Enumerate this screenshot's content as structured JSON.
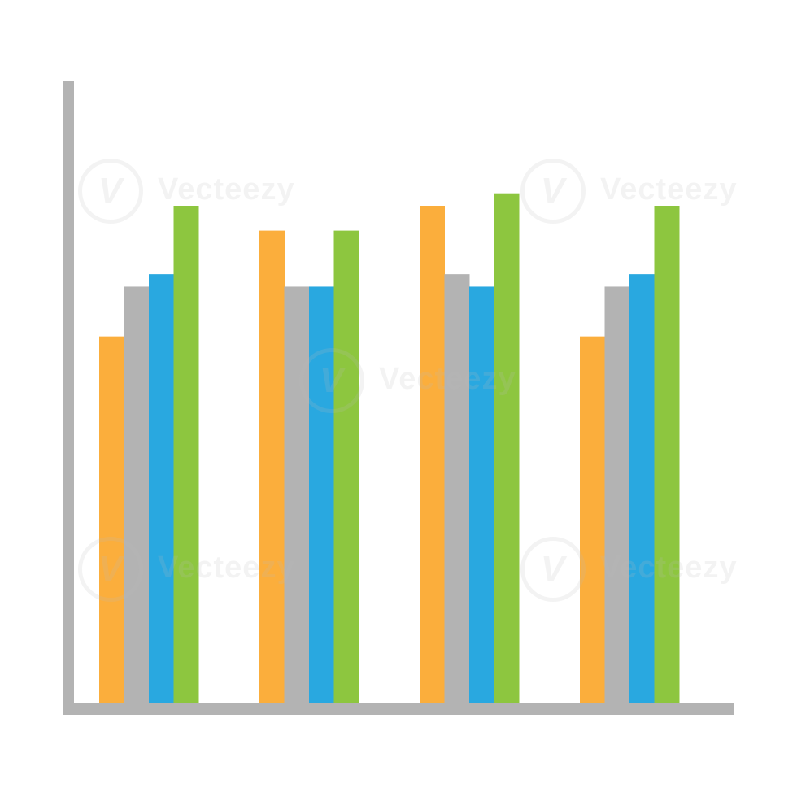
{
  "chart_data": {
    "type": "bar",
    "categories": [
      "",
      "",
      "",
      ""
    ],
    "series": [
      {
        "color": "#FBAE3C",
        "values": [
          59,
          76,
          80,
          59
        ]
      },
      {
        "color": "#B3B3B3",
        "values": [
          67,
          67,
          69,
          67
        ]
      },
      {
        "color": "#29A8E0",
        "values": [
          69,
          67,
          67,
          69
        ]
      },
      {
        "color": "#8DC63F",
        "values": [
          80,
          76,
          82,
          80
        ]
      }
    ],
    "ylim": [
      0,
      100
    ],
    "grid": false,
    "legend": "none",
    "axis_color": "#B3B3B3"
  },
  "watermark": {
    "text": "Vecteezy",
    "logo_letter": "V"
  }
}
